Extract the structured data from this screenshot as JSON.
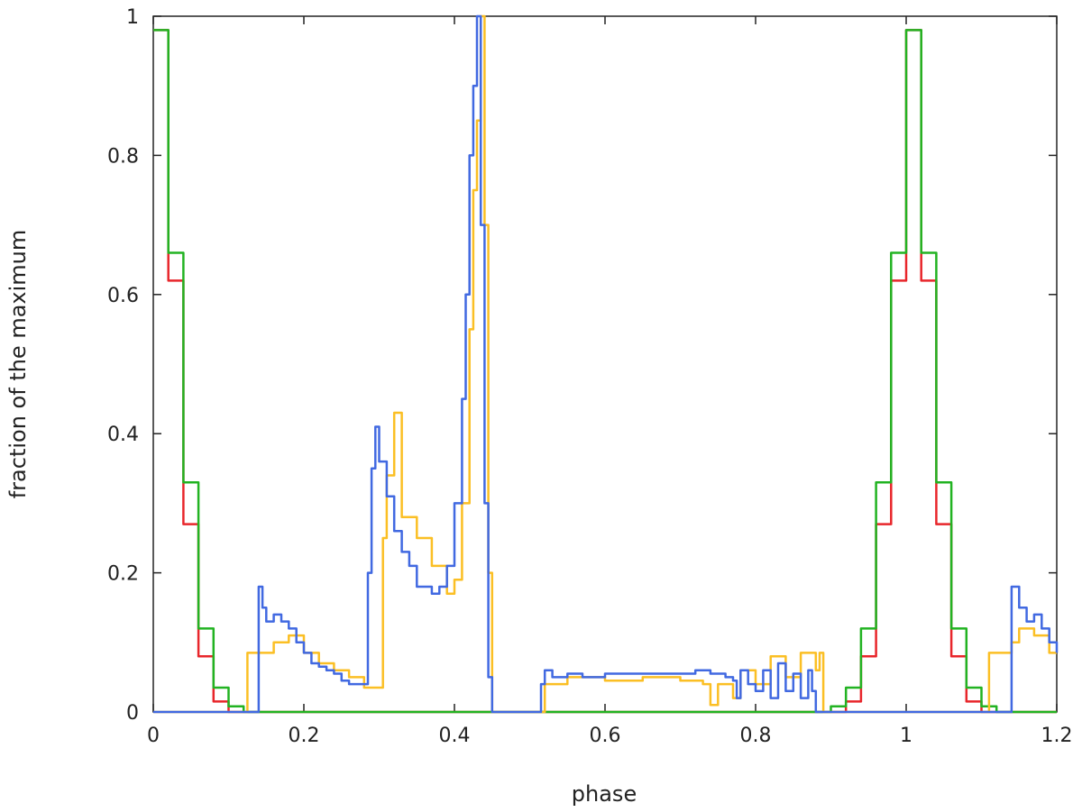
{
  "chart_data": {
    "type": "line",
    "title": "",
    "xlabel": "phase",
    "ylabel": "fraction of the maximum",
    "xlim": [
      0,
      1.2
    ],
    "ylim": [
      0,
      1
    ],
    "xticks": [
      0,
      0.2,
      0.4,
      0.6,
      0.8,
      1.0,
      1.2
    ],
    "xtick_labels": [
      "0",
      "0.2",
      "0.4",
      "0.6",
      "0.8",
      "1",
      "1.2"
    ],
    "yticks": [
      0,
      0.2,
      0.4,
      0.6,
      0.8,
      1.0
    ],
    "ytick_labels": [
      "0",
      "0.2",
      "0.4",
      "0.6",
      "0.8",
      "1"
    ],
    "grid": false,
    "legend": "none",
    "series": [
      {
        "color": "#e8262b",
        "x": [
          0,
          0.02,
          0.04,
          0.06,
          0.08,
          0.1,
          0.12,
          0.9,
          0.92,
          0.94,
          0.96,
          0.98,
          1.0,
          1.02,
          1.04,
          1.06,
          1.08,
          1.1,
          1.12,
          1.2
        ],
        "y": [
          0.98,
          0.62,
          0.27,
          0.08,
          0.015,
          0.0,
          0.0,
          0.0,
          0.015,
          0.08,
          0.27,
          0.62,
          0.98,
          0.62,
          0.27,
          0.08,
          0.015,
          0.0,
          0.0,
          0.0
        ]
      },
      {
        "color": "#22b322",
        "x": [
          0,
          0.02,
          0.04,
          0.06,
          0.08,
          0.1,
          0.12,
          0.88,
          0.9,
          0.92,
          0.94,
          0.96,
          0.98,
          1.0,
          1.02,
          1.04,
          1.06,
          1.08,
          1.1,
          1.12,
          1.2
        ],
        "y": [
          0.98,
          0.66,
          0.33,
          0.12,
          0.035,
          0.008,
          0.0,
          0.0,
          0.008,
          0.035,
          0.12,
          0.33,
          0.66,
          0.98,
          0.66,
          0.33,
          0.12,
          0.035,
          0.008,
          0.0,
          0.0
        ]
      },
      {
        "color": "#fbbf24",
        "x": [
          0,
          0.12,
          0.125,
          0.15,
          0.16,
          0.18,
          0.2,
          0.22,
          0.24,
          0.26,
          0.28,
          0.3,
          0.305,
          0.31,
          0.32,
          0.33,
          0.35,
          0.37,
          0.39,
          0.4,
          0.41,
          0.42,
          0.425,
          0.43,
          0.435,
          0.44,
          0.445,
          0.45,
          0.51,
          0.52,
          0.55,
          0.6,
          0.65,
          0.7,
          0.73,
          0.74,
          0.75,
          0.77,
          0.78,
          0.8,
          0.82,
          0.84,
          0.86,
          0.88,
          0.885,
          0.89,
          1.1,
          1.11,
          1.12,
          1.14,
          1.15,
          1.17,
          1.19,
          1.2
        ],
        "y": [
          0,
          0,
          0.085,
          0.085,
          0.1,
          0.11,
          0.085,
          0.07,
          0.06,
          0.05,
          0.035,
          0.035,
          0.25,
          0.34,
          0.43,
          0.28,
          0.25,
          0.21,
          0.17,
          0.19,
          0.3,
          0.55,
          0.75,
          0.85,
          1.0,
          0.7,
          0.2,
          0.0,
          0.0,
          0.04,
          0.05,
          0.045,
          0.05,
          0.045,
          0.04,
          0.01,
          0.04,
          0.02,
          0.06,
          0.04,
          0.08,
          0.05,
          0.085,
          0.06,
          0.085,
          0.0,
          0.0,
          0.085,
          0.085,
          0.1,
          0.12,
          0.11,
          0.085,
          0.085
        ]
      },
      {
        "color": "#4169e1",
        "x": [
          0,
          0.137,
          0.14,
          0.145,
          0.15,
          0.16,
          0.17,
          0.18,
          0.19,
          0.2,
          0.21,
          0.22,
          0.23,
          0.24,
          0.25,
          0.26,
          0.27,
          0.28,
          0.285,
          0.29,
          0.295,
          0.3,
          0.31,
          0.32,
          0.33,
          0.34,
          0.35,
          0.36,
          0.37,
          0.38,
          0.39,
          0.4,
          0.41,
          0.415,
          0.42,
          0.425,
          0.43,
          0.435,
          0.44,
          0.445,
          0.45,
          0.51,
          0.515,
          0.52,
          0.53,
          0.55,
          0.57,
          0.6,
          0.62,
          0.65,
          0.68,
          0.7,
          0.72,
          0.74,
          0.75,
          0.76,
          0.77,
          0.775,
          0.78,
          0.79,
          0.8,
          0.81,
          0.82,
          0.83,
          0.84,
          0.85,
          0.86,
          0.87,
          0.875,
          0.88,
          1.12,
          1.135,
          1.14,
          1.15,
          1.16,
          1.17,
          1.18,
          1.19,
          1.2
        ],
        "y": [
          0,
          0,
          0.18,
          0.15,
          0.13,
          0.14,
          0.13,
          0.12,
          0.1,
          0.085,
          0.07,
          0.065,
          0.06,
          0.055,
          0.045,
          0.04,
          0.04,
          0.04,
          0.2,
          0.35,
          0.41,
          0.36,
          0.31,
          0.26,
          0.23,
          0.21,
          0.18,
          0.18,
          0.17,
          0.18,
          0.21,
          0.3,
          0.45,
          0.6,
          0.8,
          0.9,
          1.0,
          0.7,
          0.3,
          0.05,
          0.0,
          0.0,
          0.04,
          0.06,
          0.05,
          0.055,
          0.05,
          0.055,
          0.055,
          0.055,
          0.055,
          0.055,
          0.06,
          0.055,
          0.055,
          0.05,
          0.045,
          0.02,
          0.06,
          0.04,
          0.03,
          0.06,
          0.02,
          0.07,
          0.03,
          0.055,
          0.02,
          0.06,
          0.03,
          0.0,
          0.0,
          0.0,
          0.18,
          0.15,
          0.13,
          0.14,
          0.12,
          0.1,
          0.085
        ]
      }
    ]
  }
}
